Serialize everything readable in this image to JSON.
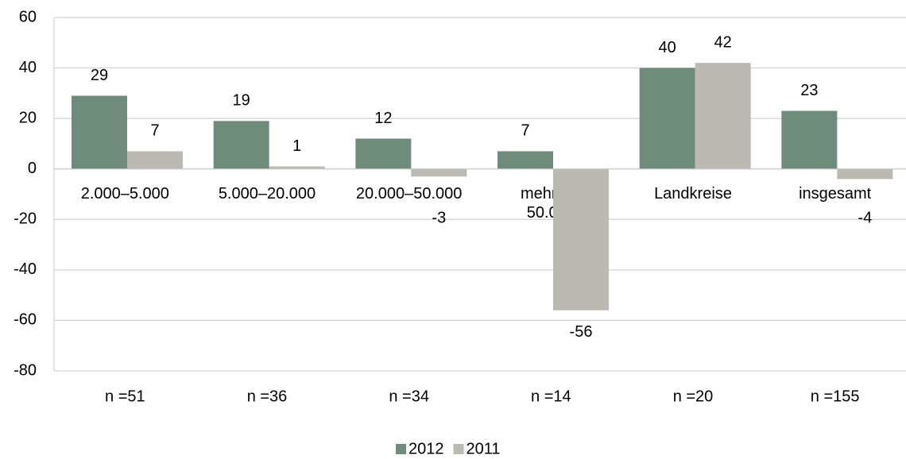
{
  "chart_data": {
    "type": "bar",
    "categories": [
      "2.000–5.000",
      "5.000–20.000",
      "20.000–50.000",
      "mehr als\n50.000",
      "Landkreise",
      "insgesamt"
    ],
    "sample_sizes": [
      "n =51",
      "n =36",
      "n =34",
      "n =14",
      "n =20",
      "n =155"
    ],
    "series": [
      {
        "name": "2012",
        "color": "#6f8b7c",
        "values": [
          29,
          19,
          12,
          7,
          40,
          23
        ]
      },
      {
        "name": "2011",
        "color": "#bcb8b2",
        "values": [
          7,
          1,
          -3,
          -56,
          42,
          -4
        ]
      }
    ],
    "ylim": [
      -80,
      60
    ],
    "yticks": [
      -80,
      -60,
      -40,
      -20,
      0,
      20,
      40,
      60
    ],
    "grid": true,
    "legend": "bottom"
  }
}
